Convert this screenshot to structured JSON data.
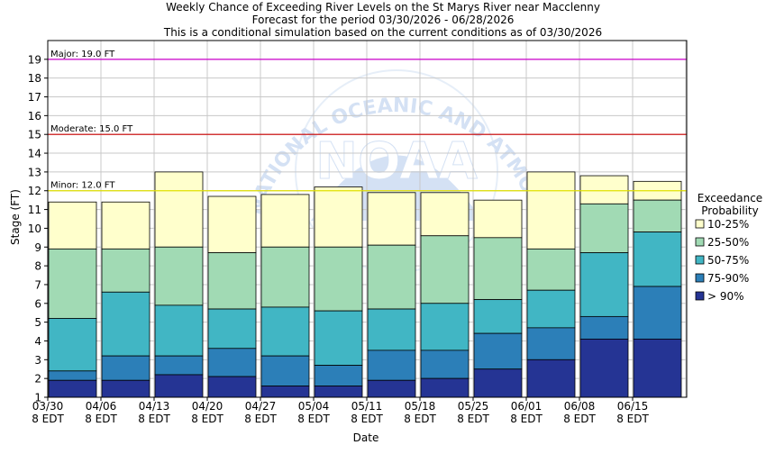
{
  "chart_data": {
    "type": "bar",
    "title": "Weekly Chance of Exceeding River Levels on the St Marys River near Macclenny",
    "subtitle1": "Forecast for the period 03/30/2026 - 06/28/2026",
    "subtitle2": "This is a conditional simulation based on the current conditions as of 03/30/2026",
    "xlabel": "Date",
    "ylabel": "Stage (FT)",
    "ylim": [
      1,
      20
    ],
    "yticks": [
      1,
      2,
      3,
      4,
      5,
      6,
      7,
      8,
      9,
      10,
      11,
      12,
      13,
      14,
      15,
      16,
      17,
      18,
      19
    ],
    "grid": true,
    "watermark": "NOAA",
    "watermark_arc": "NATIONAL OCEANIC AND ATMOSPHERIC ADMINISTRATION",
    "x_tick_labels": [
      {
        "date": "03/30",
        "time": "8 EDT"
      },
      {
        "date": "04/06",
        "time": "8 EDT"
      },
      {
        "date": "04/13",
        "time": "8 EDT"
      },
      {
        "date": "04/20",
        "time": "8 EDT"
      },
      {
        "date": "04/27",
        "time": "8 EDT"
      },
      {
        "date": "05/04",
        "time": "8 EDT"
      },
      {
        "date": "05/11",
        "time": "8 EDT"
      },
      {
        "date": "05/18",
        "time": "8 EDT"
      },
      {
        "date": "05/25",
        "time": "8 EDT"
      },
      {
        "date": "06/01",
        "time": "8 EDT"
      },
      {
        "date": "06/08",
        "time": "8 EDT"
      },
      {
        "date": "06/15",
        "time": "8 EDT"
      }
    ],
    "flood_levels": [
      {
        "label": "Major: 19.0 FT",
        "value": 19.0,
        "color": "#cc00cc"
      },
      {
        "label": "Moderate: 15.0 FT",
        "value": 15.0,
        "color": "#cc0000"
      },
      {
        "label": "Minor: 12.0 FT",
        "value": 12.0,
        "color": "#e0e000"
      }
    ],
    "legend": {
      "title_line1": "Exceedance",
      "title_line2": "Probability",
      "placement": "right"
    },
    "series": [
      {
        "name": "10-25%",
        "color": "#ffffcc",
        "top": [
          11.4,
          11.4,
          13.0,
          11.7,
          11.8,
          12.2,
          11.9,
          11.9,
          11.5,
          13.0,
          12.8,
          12.5
        ]
      },
      {
        "name": "25-50%",
        "color": "#a1dab4",
        "top": [
          8.9,
          8.9,
          9.0,
          8.7,
          9.0,
          9.0,
          9.1,
          9.6,
          9.5,
          8.9,
          11.3,
          11.5
        ]
      },
      {
        "name": "50-75%",
        "color": "#41b6c4",
        "top": [
          5.2,
          6.6,
          5.9,
          5.7,
          5.8,
          5.6,
          5.7,
          6.0,
          6.2,
          6.7,
          8.7,
          9.8
        ]
      },
      {
        "name": "75-90%",
        "color": "#2c7fb8",
        "top": [
          2.4,
          3.2,
          3.2,
          3.6,
          3.2,
          2.7,
          3.5,
          3.5,
          4.4,
          4.7,
          5.3,
          6.9
        ]
      },
      {
        "name": "> 90%",
        "color": "#253494",
        "top": [
          1.9,
          1.9,
          2.2,
          2.1,
          1.6,
          1.6,
          1.9,
          2.0,
          2.5,
          3.0,
          4.1,
          4.1
        ]
      }
    ]
  }
}
